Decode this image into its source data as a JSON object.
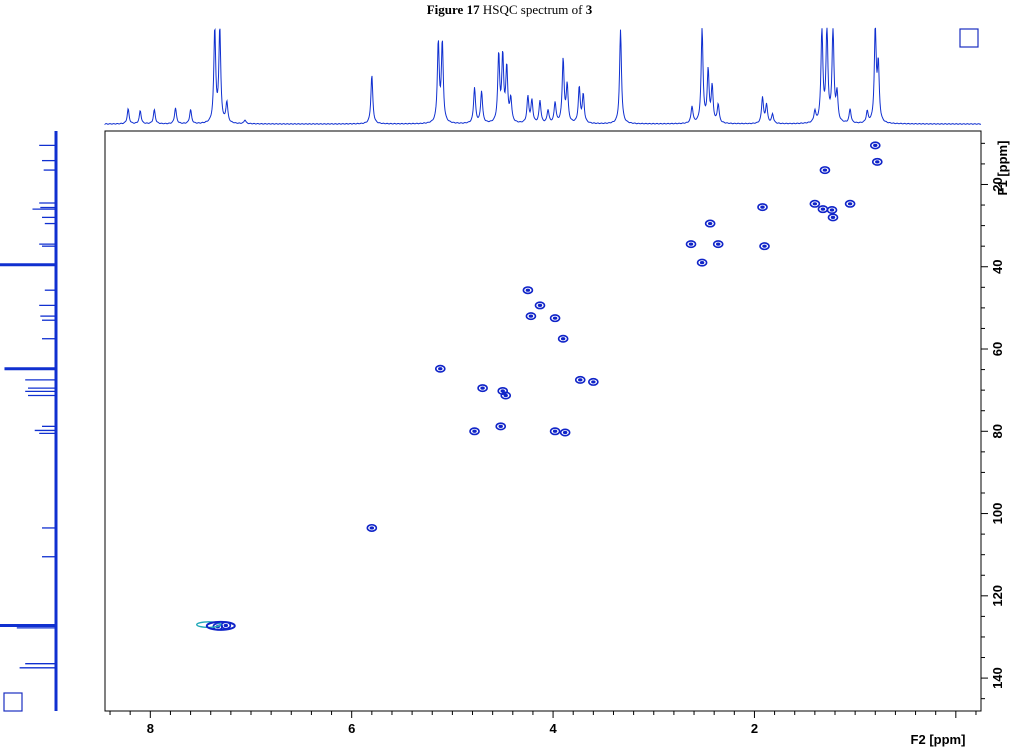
{
  "caption": {
    "prefix": "Figure 17",
    "text": " HSQC spectrum of ",
    "compound": "3"
  },
  "chart_data": {
    "type": "scatter",
    "title": "Figure 17 HSQC spectrum of 3",
    "xlabel": "F2 [ppm]",
    "ylabel": "F1 [ppm]",
    "xlim": [
      8.45,
      -0.25
    ],
    "ylim": [
      7,
      148
    ],
    "x_ticks": [
      8,
      6,
      4,
      2
    ],
    "y_ticks": [
      20,
      40,
      60,
      80,
      100,
      120,
      140
    ],
    "colors": {
      "contour": "#1024c8",
      "negative_contour": "#20a8b8",
      "trace": "#1030d0"
    },
    "cross_peaks": [
      {
        "x": 7.33,
        "y": 127.5
      },
      {
        "x": 7.25,
        "y": 127.2
      },
      {
        "x": 5.8,
        "y": 103.5
      },
      {
        "x": 5.12,
        "y": 64.8
      },
      {
        "x": 4.78,
        "y": 80.0
      },
      {
        "x": 4.7,
        "y": 69.5
      },
      {
        "x": 4.52,
        "y": 78.8
      },
      {
        "x": 4.5,
        "y": 70.2
      },
      {
        "x": 4.47,
        "y": 71.3
      },
      {
        "x": 4.25,
        "y": 45.7
      },
      {
        "x": 4.22,
        "y": 52.0
      },
      {
        "x": 4.13,
        "y": 49.4
      },
      {
        "x": 3.98,
        "y": 52.5
      },
      {
        "x": 3.98,
        "y": 80.0
      },
      {
        "x": 3.9,
        "y": 57.5
      },
      {
        "x": 3.88,
        "y": 80.3
      },
      {
        "x": 3.73,
        "y": 67.5
      },
      {
        "x": 3.6,
        "y": 68.0
      },
      {
        "x": 2.63,
        "y": 34.5
      },
      {
        "x": 2.52,
        "y": 39.0
      },
      {
        "x": 2.44,
        "y": 29.5
      },
      {
        "x": 2.36,
        "y": 34.5
      },
      {
        "x": 1.92,
        "y": 25.5
      },
      {
        "x": 1.9,
        "y": 35.0
      },
      {
        "x": 1.4,
        "y": 24.7
      },
      {
        "x": 1.32,
        "y": 26.0
      },
      {
        "x": 1.3,
        "y": 16.5
      },
      {
        "x": 1.23,
        "y": 26.2
      },
      {
        "x": 1.22,
        "y": 28.0
      },
      {
        "x": 1.05,
        "y": 24.7
      },
      {
        "x": 0.8,
        "y": 10.5
      },
      {
        "x": 0.78,
        "y": 14.5
      }
    ],
    "proton_peaks": [
      {
        "x": 8.22,
        "h": 0.16
      },
      {
        "x": 8.1,
        "h": 0.14
      },
      {
        "x": 7.96,
        "h": 0.15
      },
      {
        "x": 7.75,
        "h": 0.17
      },
      {
        "x": 7.6,
        "h": 0.15
      },
      {
        "x": 7.36,
        "h": 1.0
      },
      {
        "x": 7.31,
        "h": 1.0
      },
      {
        "x": 7.24,
        "h": 0.22
      },
      {
        "x": 7.06,
        "h": 0.04
      },
      {
        "x": 5.8,
        "h": 0.52
      },
      {
        "x": 5.14,
        "h": 0.85
      },
      {
        "x": 5.1,
        "h": 0.85
      },
      {
        "x": 4.78,
        "h": 0.38
      },
      {
        "x": 4.71,
        "h": 0.34
      },
      {
        "x": 4.54,
        "h": 0.72
      },
      {
        "x": 4.5,
        "h": 0.7
      },
      {
        "x": 4.46,
        "h": 0.58
      },
      {
        "x": 4.42,
        "h": 0.25
      },
      {
        "x": 4.25,
        "h": 0.28
      },
      {
        "x": 4.21,
        "h": 0.24
      },
      {
        "x": 4.13,
        "h": 0.24
      },
      {
        "x": 4.05,
        "h": 0.14
      },
      {
        "x": 3.98,
        "h": 0.22
      },
      {
        "x": 3.9,
        "h": 0.68
      },
      {
        "x": 3.86,
        "h": 0.4
      },
      {
        "x": 3.74,
        "h": 0.38
      },
      {
        "x": 3.7,
        "h": 0.3
      },
      {
        "x": 3.33,
        "h": 1.0
      },
      {
        "x": 2.62,
        "h": 0.18
      },
      {
        "x": 2.52,
        "h": 1.0
      },
      {
        "x": 2.46,
        "h": 0.55
      },
      {
        "x": 2.42,
        "h": 0.38
      },
      {
        "x": 2.36,
        "h": 0.2
      },
      {
        "x": 1.92,
        "h": 0.28
      },
      {
        "x": 1.88,
        "h": 0.2
      },
      {
        "x": 1.82,
        "h": 0.1
      },
      {
        "x": 1.4,
        "h": 0.12
      },
      {
        "x": 1.33,
        "h": 1.0
      },
      {
        "x": 1.28,
        "h": 1.0
      },
      {
        "x": 1.22,
        "h": 1.0
      },
      {
        "x": 1.18,
        "h": 0.3
      },
      {
        "x": 1.05,
        "h": 0.15
      },
      {
        "x": 0.88,
        "h": 0.12
      },
      {
        "x": 0.8,
        "h": 1.0
      },
      {
        "x": 0.77,
        "h": 0.6
      }
    ],
    "carbon_peaks": [
      {
        "y": 10.5,
        "h": 0.3
      },
      {
        "y": 14.2,
        "h": 0.25
      },
      {
        "y": 16.5,
        "h": 0.22
      },
      {
        "y": 24.5,
        "h": 0.3
      },
      {
        "y": 25.6,
        "h": 0.28
      },
      {
        "y": 26.0,
        "h": 0.42
      },
      {
        "y": 28.0,
        "h": 0.25
      },
      {
        "y": 29.5,
        "h": 0.2
      },
      {
        "y": 34.5,
        "h": 0.3
      },
      {
        "y": 35.0,
        "h": 0.25
      },
      {
        "y": 39.5,
        "h": 1.0
      },
      {
        "y": 45.7,
        "h": 0.2
      },
      {
        "y": 49.4,
        "h": 0.3
      },
      {
        "y": 52.0,
        "h": 0.28
      },
      {
        "y": 53.0,
        "h": 0.25
      },
      {
        "y": 57.5,
        "h": 0.25
      },
      {
        "y": 64.8,
        "h": 0.92
      },
      {
        "y": 67.5,
        "h": 0.55
      },
      {
        "y": 69.5,
        "h": 0.5
      },
      {
        "y": 70.3,
        "h": 0.55
      },
      {
        "y": 71.3,
        "h": 0.5
      },
      {
        "y": 78.8,
        "h": 0.25
      },
      {
        "y": 79.8,
        "h": 0.38
      },
      {
        "y": 80.5,
        "h": 0.3
      },
      {
        "y": 103.5,
        "h": 0.25
      },
      {
        "y": 110.5,
        "h": 0.25
      },
      {
        "y": 127.2,
        "h": 1.0
      },
      {
        "y": 127.8,
        "h": 0.7
      },
      {
        "y": 136.5,
        "h": 0.55
      },
      {
        "y": 137.5,
        "h": 0.65
      }
    ]
  }
}
